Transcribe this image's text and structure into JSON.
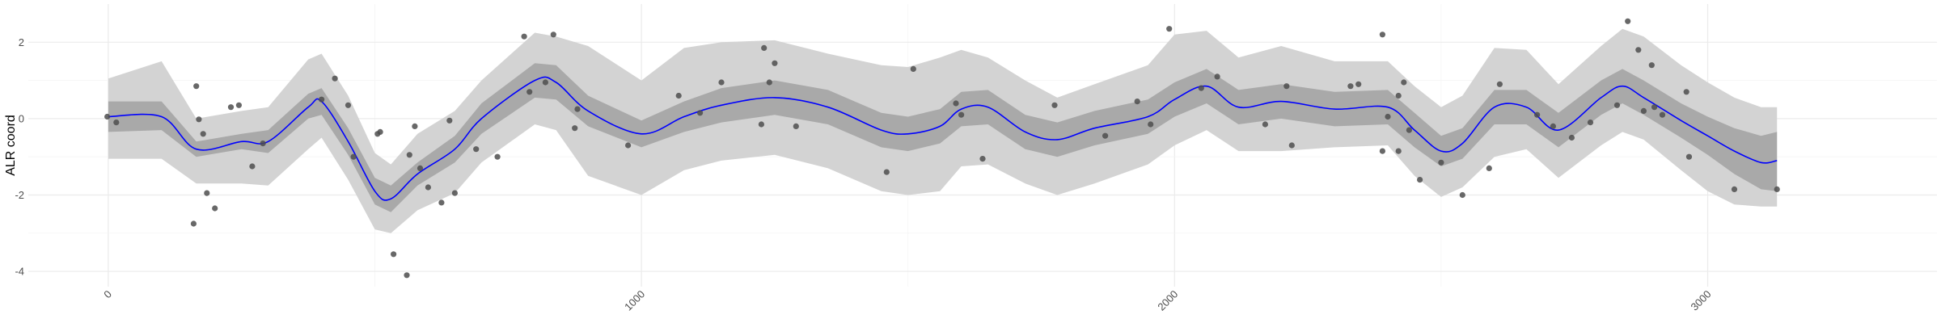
{
  "chart_data": {
    "type": "scatter",
    "title": "",
    "xlabel": "",
    "ylabel": "ALR coord",
    "xlim": [
      -150,
      3430
    ],
    "ylim": [
      -4.4,
      3.0
    ],
    "x_ticks": [
      0,
      1000,
      2000,
      3000
    ],
    "x_tick_labels": [
      "0",
      "1000",
      "2000",
      "3000"
    ],
    "y_ticks": [
      -4,
      -2,
      0,
      2
    ],
    "y_tick_labels": [
      "-4",
      "-2",
      "0",
      "2"
    ],
    "grid": true,
    "legend": "none",
    "colors": {
      "points": "#4d4d4d",
      "smooth_line": "#0000ff",
      "inner_band": "#a9a9a9",
      "outer_band": "#d3d3d3",
      "grid": "#ebebeb"
    },
    "points": {
      "x": [
        -2,
        15,
        160,
        165,
        170,
        178,
        185,
        200,
        230,
        245,
        270,
        290,
        400,
        425,
        450,
        460,
        505,
        510,
        535,
        560,
        565,
        575,
        585,
        600,
        625,
        640,
        650,
        690,
        730,
        780,
        790,
        820,
        835,
        875,
        880,
        975,
        1070,
        1110,
        1150,
        1225,
        1230,
        1250,
        1240,
        1290,
        1460,
        1510,
        1590,
        1600,
        1640,
        1775,
        1870,
        1930,
        1955,
        1990,
        2050,
        2080,
        2170,
        2210,
        2220,
        2330,
        2345,
        2390,
        2390,
        2400,
        2420,
        2420,
        2430,
        2440,
        2460,
        2500,
        2540,
        2590,
        2610,
        2680,
        2710,
        2745,
        2780,
        2830,
        2850,
        2870,
        2880,
        2895,
        2900,
        2915,
        2965,
        2960,
        3050,
        3130
      ],
      "y": [
        0.05,
        -0.1,
        -2.75,
        0.85,
        -0.02,
        -0.4,
        -1.95,
        -2.35,
        0.3,
        0.35,
        -1.25,
        -0.65,
        0.5,
        1.05,
        0.35,
        -1.0,
        -0.4,
        -0.35,
        -3.55,
        -4.1,
        -0.95,
        -0.2,
        -1.3,
        -1.8,
        -2.2,
        -0.05,
        -1.95,
        -0.8,
        -1.0,
        2.15,
        0.7,
        0.95,
        2.2,
        -0.25,
        0.25,
        -0.7,
        0.6,
        0.15,
        0.95,
        -0.15,
        1.85,
        1.45,
        0.95,
        -0.2,
        -1.4,
        1.3,
        0.4,
        0.1,
        -1.05,
        0.35,
        -0.45,
        0.45,
        -0.15,
        2.35,
        0.8,
        1.1,
        -0.15,
        0.85,
        -0.7,
        0.85,
        0.9,
        2.2,
        -0.85,
        0.05,
        -0.85,
        0.6,
        0.95,
        -0.3,
        -1.6,
        -1.15,
        -2.0,
        -1.3,
        0.9,
        0.1,
        -0.2,
        -0.5,
        -0.1,
        0.35,
        2.55,
        1.8,
        0.2,
        1.4,
        0.3,
        0.1,
        -1.0,
        0.7,
        -1.85,
        -1.85
      ]
    },
    "smooth": {
      "x": [
        0,
        100,
        165,
        250,
        300,
        375,
        400,
        450,
        500,
        530,
        580,
        650,
        700,
        800,
        840,
        900,
        1000,
        1080,
        1150,
        1250,
        1350,
        1450,
        1500,
        1560,
        1600,
        1650,
        1720,
        1780,
        1850,
        1950,
        2000,
        2060,
        2120,
        2200,
        2300,
        2400,
        2450,
        2500,
        2540,
        2600,
        2660,
        2720,
        2800,
        2840,
        2880,
        2950,
        3000,
        3050,
        3100,
        3130
      ],
      "y": [
        0.05,
        0.05,
        -0.8,
        -0.6,
        -0.6,
        0.3,
        0.45,
        -0.6,
        -1.9,
        -2.1,
        -1.45,
        -0.8,
        0.0,
        1.0,
        0.95,
        0.2,
        -0.4,
        0.05,
        0.35,
        0.55,
        0.3,
        -0.3,
        -0.4,
        -0.2,
        0.25,
        0.3,
        -0.35,
        -0.55,
        -0.25,
        0.05,
        0.5,
        0.85,
        0.3,
        0.45,
        0.25,
        0.3,
        -0.3,
        -0.85,
        -0.65,
        0.3,
        0.3,
        -0.3,
        0.55,
        0.85,
        0.55,
        -0.05,
        -0.45,
        -0.85,
        -1.15,
        -1.1
      ]
    },
    "band_inner": {
      "x": [
        0,
        100,
        165,
        250,
        300,
        375,
        400,
        450,
        500,
        530,
        580,
        650,
        700,
        800,
        840,
        900,
        1000,
        1080,
        1150,
        1250,
        1350,
        1450,
        1500,
        1560,
        1600,
        1650,
        1720,
        1780,
        1850,
        1950,
        2000,
        2060,
        2120,
        2200,
        2300,
        2400,
        2450,
        2500,
        2540,
        2600,
        2660,
        2720,
        2800,
        2840,
        2880,
        2950,
        3000,
        3050,
        3100,
        3130
      ],
      "lower": [
        -0.35,
        -0.3,
        -1.0,
        -0.8,
        -0.9,
        0.0,
        0.1,
        -0.95,
        -2.25,
        -2.45,
        -1.75,
        -1.15,
        -0.4,
        0.55,
        0.5,
        -0.2,
        -0.75,
        -0.35,
        -0.1,
        0.1,
        -0.15,
        -0.75,
        -0.85,
        -0.65,
        -0.2,
        -0.15,
        -0.8,
        -1.0,
        -0.7,
        -0.4,
        0.05,
        0.4,
        -0.15,
        0.0,
        -0.2,
        -0.15,
        -0.75,
        -1.25,
        -1.05,
        -0.15,
        -0.15,
        -0.75,
        0.1,
        0.4,
        0.1,
        -0.5,
        -0.95,
        -1.45,
        -1.85,
        -1.9
      ],
      "upper": [
        0.45,
        0.45,
        -0.6,
        -0.4,
        -0.3,
        0.65,
        0.8,
        -0.25,
        -1.55,
        -1.75,
        -1.15,
        -0.45,
        0.4,
        1.45,
        1.4,
        0.6,
        -0.05,
        0.45,
        0.8,
        1.0,
        0.75,
        0.15,
        0.05,
        0.25,
        0.7,
        0.75,
        0.1,
        -0.1,
        0.2,
        0.5,
        0.95,
        1.3,
        0.75,
        0.9,
        0.7,
        0.75,
        0.15,
        -0.45,
        -0.25,
        0.75,
        0.75,
        0.15,
        1.0,
        1.3,
        1.0,
        0.4,
        0.05,
        -0.25,
        -0.45,
        -0.35
      ]
    },
    "band_outer": {
      "x": [
        0,
        100,
        165,
        250,
        300,
        375,
        400,
        450,
        500,
        530,
        580,
        650,
        700,
        800,
        840,
        900,
        1000,
        1080,
        1150,
        1250,
        1350,
        1450,
        1500,
        1560,
        1600,
        1650,
        1720,
        1780,
        1850,
        1950,
        2000,
        2060,
        2120,
        2200,
        2300,
        2400,
        2450,
        2500,
        2540,
        2600,
        2660,
        2720,
        2800,
        2840,
        2880,
        2950,
        3000,
        3050,
        3100,
        3130
      ],
      "lower": [
        -1.05,
        -1.05,
        -1.7,
        -1.7,
        -1.75,
        -0.8,
        -0.5,
        -1.6,
        -2.9,
        -3.0,
        -2.4,
        -1.95,
        -1.15,
        -0.15,
        -0.3,
        -1.5,
        -2.0,
        -1.35,
        -1.1,
        -0.95,
        -1.3,
        -1.9,
        -2.0,
        -1.9,
        -1.25,
        -1.2,
        -1.7,
        -2.0,
        -1.7,
        -1.2,
        -0.7,
        -0.3,
        -0.85,
        -0.85,
        -0.75,
        -0.7,
        -1.5,
        -2.05,
        -1.8,
        -1.0,
        -0.8,
        -1.55,
        -0.7,
        -0.35,
        -0.55,
        -1.35,
        -1.9,
        -2.25,
        -2.3,
        -2.3
      ],
      "upper": [
        1.05,
        1.5,
        0.0,
        0.2,
        0.3,
        1.55,
        1.7,
        0.6,
        -0.9,
        -1.2,
        -0.4,
        0.2,
        1.0,
        2.25,
        2.15,
        1.9,
        1.0,
        1.85,
        2.0,
        2.05,
        1.7,
        1.4,
        1.35,
        1.6,
        1.8,
        1.6,
        1.0,
        0.55,
        0.9,
        1.4,
        2.2,
        2.3,
        1.6,
        1.9,
        1.5,
        1.5,
        0.85,
        0.3,
        0.6,
        1.85,
        1.8,
        0.9,
        1.9,
        2.35,
        2.15,
        1.4,
        0.95,
        0.55,
        0.3,
        0.3
      ]
    }
  }
}
